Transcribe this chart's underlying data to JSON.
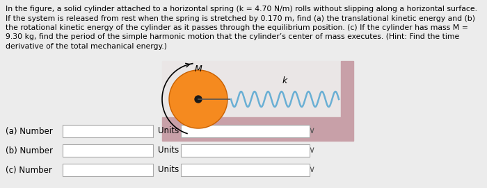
{
  "background_color": "#ececec",
  "text_lines": [
    "In the figure, a solid cylinder attached to a horizontal spring (k = 4.70 N/m) rolls without slipping along a horizontal surface.",
    "If the system is released from rest when the spring is stretched by 0.170 m, find (a) the translational kinetic energy and (b)",
    "the rotational kinetic energy of the cylinder as it passes through the equilibrium position. (c) If the cylinder has mass M =",
    "9.30 kg, find the period of the simple harmonic motion that the cylinder’s center of mass executes. (Hint: Find the time",
    "derivative of the total mechanical energy.)"
  ],
  "text_fontsize": 7.8,
  "cylinder_color": "#f58a1f",
  "cylinder_edge_color": "#c86000",
  "spring_color": "#6aafd4",
  "wall_color": "#c8a0a8",
  "floor_color": "#c8a0a8",
  "label_M": "M",
  "label_k": "k",
  "rows": [
    {
      "label": "(a) Number",
      "units_label": "Units"
    },
    {
      "label": "(b) Number",
      "units_label": "Units"
    },
    {
      "label": "(c) Number",
      "units_label": "Units"
    }
  ],
  "row_input_color": "#ffffff",
  "row_border_color": "#aaaaaa",
  "diagram_bg": "#e8e4e4"
}
